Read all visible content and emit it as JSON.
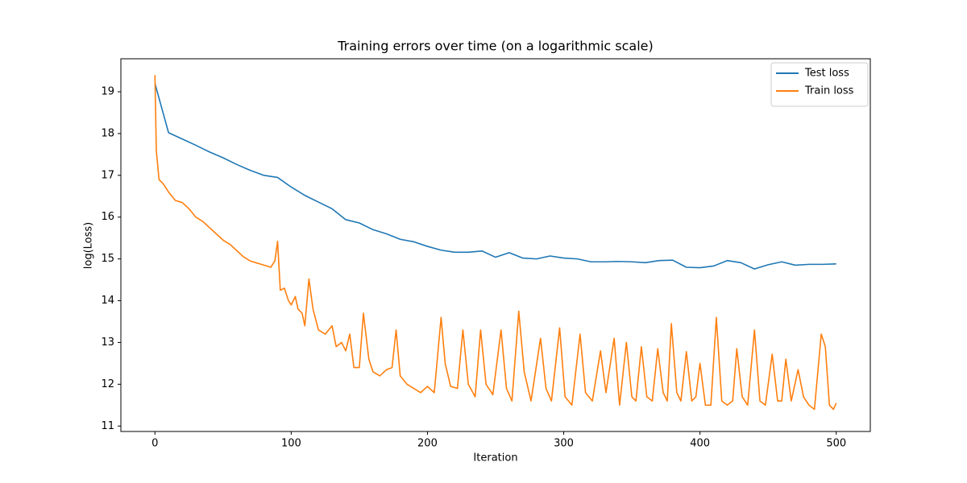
{
  "chart_data": {
    "type": "line",
    "title": "Training errors over time (on a logarithmic scale)",
    "x_label": "Iteration",
    "y_label": "log(Loss)",
    "xlim": [
      -25,
      525
    ],
    "xticks": [
      0,
      100,
      200,
      300,
      400,
      500
    ],
    "ylim": [
      10.87,
      19.79
    ],
    "yticks": [
      11,
      12,
      13,
      14,
      15,
      16,
      17,
      18,
      19
    ],
    "legend": "upper right",
    "series": [
      {
        "name": "Test loss",
        "color": "#1f77b4",
        "x": [
          0,
          10,
          20,
          30,
          40,
          50,
          60,
          70,
          80,
          90,
          100,
          110,
          120,
          130,
          140,
          150,
          160,
          170,
          180,
          190,
          200,
          210,
          220,
          230,
          240,
          250,
          260,
          270,
          280,
          290,
          300,
          310,
          320,
          330,
          340,
          350,
          360,
          370,
          380,
          390,
          400,
          410,
          420,
          430,
          440,
          450,
          460,
          470,
          480,
          490,
          500
        ],
        "values": [
          19.2,
          18.02,
          17.87,
          17.72,
          17.56,
          17.42,
          17.26,
          17.12,
          17.0,
          16.95,
          16.72,
          16.52,
          16.36,
          16.2,
          15.94,
          15.86,
          15.7,
          15.6,
          15.47,
          15.41,
          15.3,
          15.21,
          15.16,
          15.16,
          15.19,
          15.04,
          15.15,
          15.02,
          15.0,
          15.07,
          15.02,
          15.0,
          14.93,
          14.93,
          14.94,
          14.93,
          14.91,
          14.96,
          14.97,
          14.8,
          14.79,
          14.83,
          14.96,
          14.91,
          14.76,
          14.86,
          14.93,
          14.85,
          14.87,
          14.87,
          14.88
        ]
      },
      {
        "name": "Train loss",
        "color": "#ff7f0e",
        "x": [
          0,
          1,
          3,
          6,
          10,
          15,
          20,
          25,
          30,
          35,
          40,
          45,
          50,
          55,
          60,
          65,
          70,
          75,
          80,
          85,
          88,
          90,
          92,
          95,
          98,
          100,
          103,
          105,
          108,
          110,
          113,
          116,
          120,
          125,
          130,
          133,
          137,
          140,
          143,
          146,
          150,
          153,
          157,
          160,
          165,
          170,
          174,
          177,
          180,
          185,
          190,
          195,
          200,
          205,
          210,
          213,
          217,
          222,
          226,
          230,
          235,
          239,
          243,
          248,
          254,
          258,
          262,
          267,
          271,
          276,
          283,
          287,
          291,
          297,
          301,
          306,
          312,
          316,
          321,
          327,
          331,
          337,
          341,
          346,
          350,
          353,
          357,
          361,
          365,
          369,
          373,
          376,
          379,
          383,
          386,
          390,
          394,
          397,
          400,
          404,
          408,
          412,
          416,
          420,
          424,
          427,
          431,
          435,
          440,
          444,
          448,
          453,
          457,
          460,
          463,
          467,
          472,
          476,
          480,
          484,
          489,
          492,
          495,
          498,
          500
        ],
        "values": [
          19.4,
          17.6,
          16.9,
          16.8,
          16.6,
          16.4,
          16.35,
          16.2,
          16.0,
          15.9,
          15.75,
          15.6,
          15.45,
          15.35,
          15.2,
          15.05,
          14.95,
          14.9,
          14.85,
          14.8,
          14.95,
          15.42,
          14.25,
          14.3,
          14.0,
          13.9,
          14.1,
          13.8,
          13.7,
          13.4,
          14.52,
          13.8,
          13.3,
          13.2,
          13.4,
          12.9,
          13.0,
          12.8,
          13.2,
          12.4,
          12.4,
          13.7,
          12.6,
          12.3,
          12.2,
          12.35,
          12.4,
          13.3,
          12.2,
          12.0,
          11.9,
          11.8,
          11.95,
          11.8,
          13.6,
          12.5,
          11.95,
          11.9,
          13.3,
          12.0,
          11.7,
          13.3,
          12.0,
          11.75,
          13.3,
          11.9,
          11.6,
          13.75,
          12.3,
          11.6,
          13.1,
          11.9,
          11.6,
          13.35,
          11.7,
          11.5,
          13.2,
          11.8,
          11.6,
          12.8,
          11.8,
          13.1,
          11.5,
          13.0,
          11.7,
          11.6,
          12.9,
          11.7,
          11.6,
          12.85,
          11.8,
          11.6,
          13.45,
          11.8,
          11.6,
          12.78,
          11.6,
          11.7,
          12.5,
          11.5,
          11.5,
          13.6,
          11.6,
          11.5,
          11.6,
          12.85,
          11.7,
          11.5,
          13.3,
          11.6,
          11.5,
          12.72,
          11.6,
          11.6,
          12.6,
          11.6,
          12.35,
          11.7,
          11.5,
          11.4,
          13.2,
          12.9,
          11.5,
          11.4,
          11.55
        ]
      }
    ]
  }
}
